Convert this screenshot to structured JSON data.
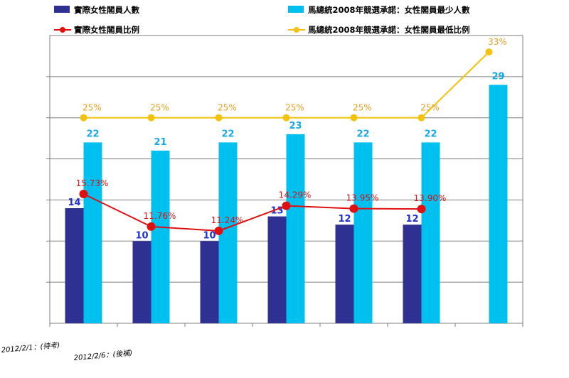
{
  "chart_data": {
    "type": "bar",
    "categories": [
      "",
      "",
      "",
      "",
      "",
      "",
      ""
    ],
    "series": [
      {
        "name": "實際女性閣員人數",
        "kind": "bar",
        "color": "#2e3192",
        "values": [
          14,
          10,
          10,
          13,
          12,
          12,
          null
        ],
        "label_color": "#1f2fd0"
      },
      {
        "name": "馬總統2008年競選承諾：女性閣員最少人數",
        "kind": "bar",
        "color": "#00c0f0",
        "values": [
          22,
          21,
          22,
          23,
          22,
          22,
          29
        ],
        "label_color": "#18a8e8"
      },
      {
        "name": "實際女性閣員比例",
        "kind": "line",
        "color": "#e01010",
        "values": [
          15.73,
          11.76,
          11.24,
          14.29,
          13.95,
          13.9,
          null
        ],
        "labels": [
          "15.73%",
          "11.76%",
          "11.24%",
          "14.29%",
          "13.95%",
          "13.90%",
          ""
        ]
      },
      {
        "name": "馬總統2008年競選承諾：女性閣員最低比例",
        "kind": "line",
        "color": "#f4c20d",
        "values": [
          25,
          25,
          25,
          25,
          25,
          25,
          33
        ],
        "labels": [
          "25%",
          "25%",
          "25%",
          "25%",
          "25%",
          "25%",
          "33%"
        ],
        "label_color": "#e8a020"
      }
    ],
    "ylim": [
      0,
      35
    ],
    "grid": true,
    "legend_placement": "top",
    "footnotes": [
      "2012/2/1：(待考)",
      "2012/2/6：(後補)"
    ]
  }
}
